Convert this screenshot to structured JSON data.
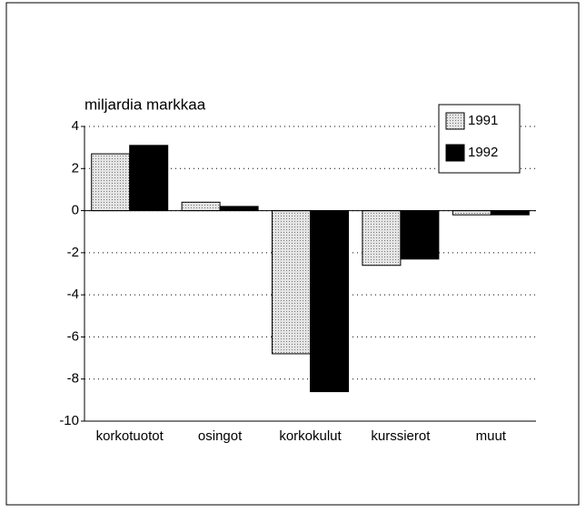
{
  "chart_data": {
    "type": "bar",
    "y_label": "miljardia markkaa",
    "categories": [
      "korkotuotot",
      "osingot",
      "korkokulut",
      "kurssierot",
      "muut"
    ],
    "series": [
      {
        "name": "1991",
        "color": "#c8c8c8",
        "values": [
          2.7,
          0.4,
          -6.8,
          -2.6,
          -0.2
        ]
      },
      {
        "name": "1992",
        "color": "#000000",
        "values": [
          3.1,
          0.2,
          -8.6,
          -2.3,
          -0.2
        ]
      }
    ],
    "ylim": [
      -10,
      4
    ],
    "yticks": [
      -10,
      -8,
      -6,
      -4,
      -2,
      0,
      2,
      4
    ],
    "grid": true,
    "legend": "top-right"
  }
}
